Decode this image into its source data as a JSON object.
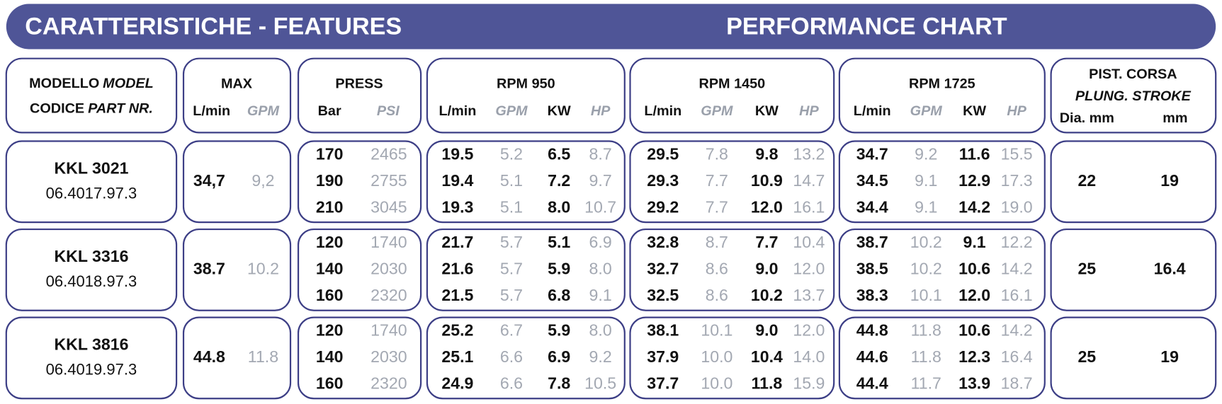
{
  "header": {
    "left": "CARATTERISTICHE - FEATURES",
    "right": "PERFORMANCE CHART"
  },
  "columns": {
    "model": {
      "line1": "MODELLO",
      "line1_en": "MODEL",
      "line2": "CODICE",
      "line2_en": "PART NR."
    },
    "max": {
      "title": "MAX",
      "units": [
        "L/min",
        "GPM"
      ]
    },
    "press": {
      "title": "PRESS",
      "units": [
        "Bar",
        "PSI"
      ]
    },
    "rpm": [
      "RPM 950",
      "RPM 1450",
      "RPM 1725"
    ],
    "rpm_units": [
      "L/min",
      "GPM",
      "KW",
      "HP"
    ],
    "piston": {
      "line1": "PIST. CORSA",
      "line2": "PLUNG. STROKE",
      "units": [
        "Dia. mm",
        "mm"
      ]
    }
  },
  "rows": [
    {
      "model": "KKL 3021",
      "part": "06.4017.97.3",
      "max": [
        "34,7",
        "9,2"
      ],
      "press": [
        [
          "170",
          "2465"
        ],
        [
          "190",
          "2755"
        ],
        [
          "210",
          "3045"
        ]
      ],
      "rpm": [
        [
          [
            "19.5",
            "5.2",
            "6.5",
            "8.7"
          ],
          [
            "19.4",
            "5.1",
            "7.2",
            "9.7"
          ],
          [
            "19.3",
            "5.1",
            "8.0",
            "10.7"
          ]
        ],
        [
          [
            "29.5",
            "7.8",
            "9.8",
            "13.2"
          ],
          [
            "29.3",
            "7.7",
            "10.9",
            "14.7"
          ],
          [
            "29.2",
            "7.7",
            "12.0",
            "16.1"
          ]
        ],
        [
          [
            "34.7",
            "9.2",
            "11.6",
            "15.5"
          ],
          [
            "34.5",
            "9.1",
            "12.9",
            "17.3"
          ],
          [
            "34.4",
            "9.1",
            "14.2",
            "19.0"
          ]
        ]
      ],
      "piston": [
        "22",
        "19"
      ]
    },
    {
      "model": "KKL 3316",
      "part": "06.4018.97.3",
      "max": [
        "38.7",
        "10.2"
      ],
      "press": [
        [
          "120",
          "1740"
        ],
        [
          "140",
          "2030"
        ],
        [
          "160",
          "2320"
        ]
      ],
      "rpm": [
        [
          [
            "21.7",
            "5.7",
            "5.1",
            "6.9"
          ],
          [
            "21.6",
            "5.7",
            "5.9",
            "8.0"
          ],
          [
            "21.5",
            "5.7",
            "6.8",
            "9.1"
          ]
        ],
        [
          [
            "32.8",
            "8.7",
            "7.7",
            "10.4"
          ],
          [
            "32.7",
            "8.6",
            "9.0",
            "12.0"
          ],
          [
            "32.5",
            "8.6",
            "10.2",
            "13.7"
          ]
        ],
        [
          [
            "38.7",
            "10.2",
            "9.1",
            "12.2"
          ],
          [
            "38.5",
            "10.2",
            "10.6",
            "14.2"
          ],
          [
            "38.3",
            "10.1",
            "12.0",
            "16.1"
          ]
        ]
      ],
      "piston": [
        "25",
        "16.4"
      ]
    },
    {
      "model": "KKL 3816",
      "part": "06.4019.97.3",
      "max": [
        "44.8",
        "11.8"
      ],
      "press": [
        [
          "120",
          "1740"
        ],
        [
          "140",
          "2030"
        ],
        [
          "160",
          "2320"
        ]
      ],
      "rpm": [
        [
          [
            "25.2",
            "6.7",
            "5.9",
            "8.0"
          ],
          [
            "25.1",
            "6.6",
            "6.9",
            "9.2"
          ],
          [
            "24.9",
            "6.6",
            "7.8",
            "10.5"
          ]
        ],
        [
          [
            "38.1",
            "10.1",
            "9.0",
            "12.0"
          ],
          [
            "37.9",
            "10.0",
            "10.4",
            "14.0"
          ],
          [
            "37.7",
            "10.0",
            "11.8",
            "15.9"
          ]
        ],
        [
          [
            "44.8",
            "11.8",
            "10.6",
            "14.2"
          ],
          [
            "44.6",
            "11.8",
            "12.3",
            "16.4"
          ],
          [
            "44.4",
            "11.7",
            "13.9",
            "18.7"
          ]
        ]
      ],
      "piston": [
        "25",
        "19"
      ]
    }
  ]
}
